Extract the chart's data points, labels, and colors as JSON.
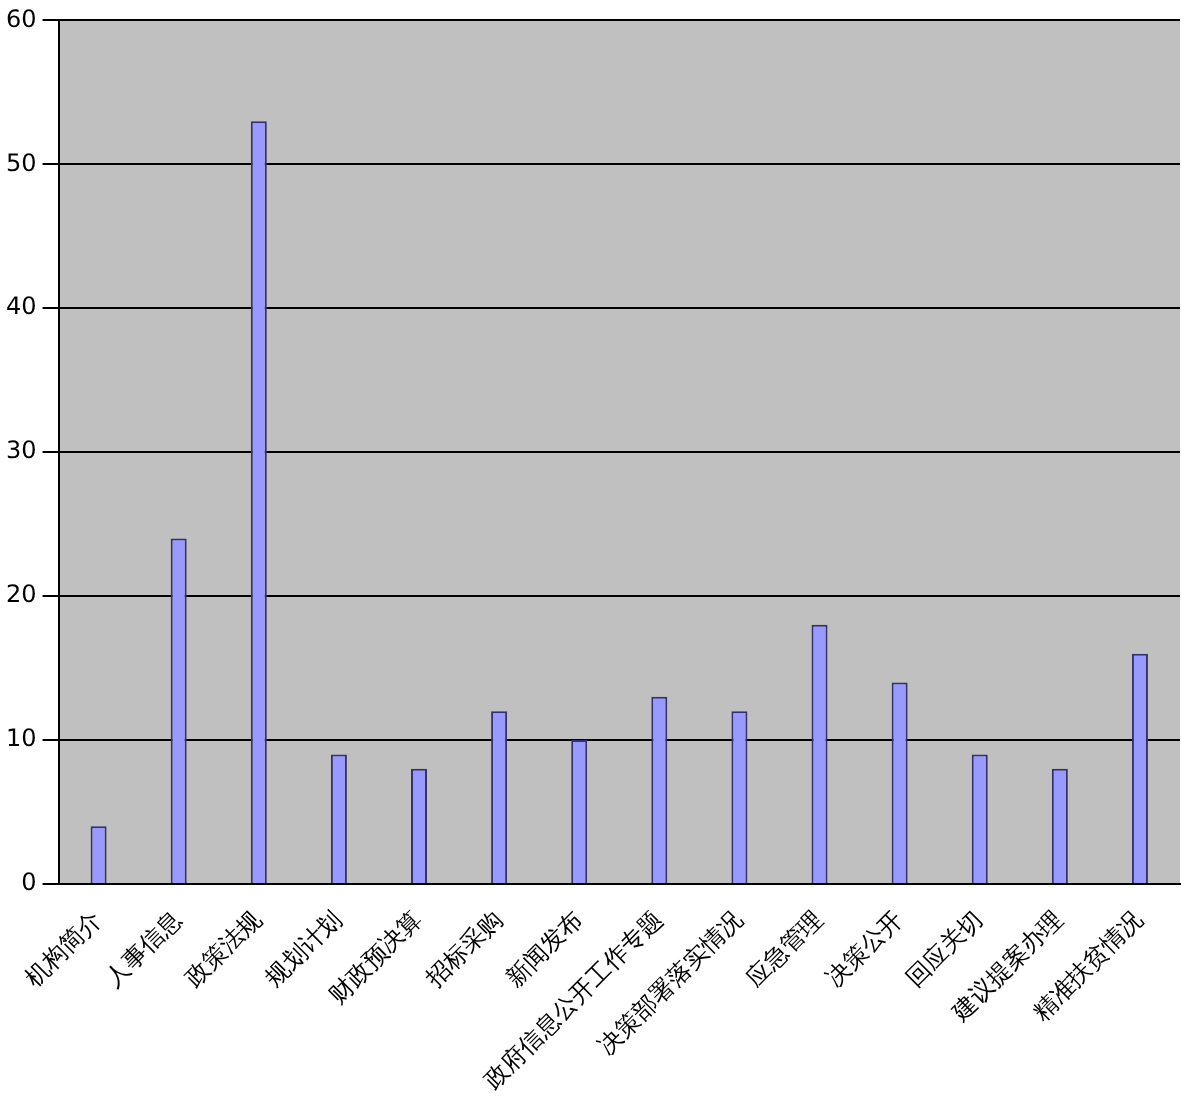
{
  "chart_data": {
    "type": "bar",
    "categories": [
      "机构简介",
      "人事信息",
      "政策法规",
      "规划计划",
      "财政预决算",
      "招标采购",
      "新闻发布",
      "政府信息公开工作专题",
      "决策部署落实情况",
      "应急管理",
      "决策公开",
      "回应关切",
      "建议提案办理",
      "精准扶贫情况"
    ],
    "values": [
      4,
      24,
      53,
      9,
      8,
      12,
      10,
      13,
      12,
      18,
      14,
      9,
      8,
      16
    ],
    "color": "#9999ff",
    "ylim": [
      0,
      60
    ],
    "yticks": [
      0,
      10,
      20,
      30,
      40,
      50,
      60
    ],
    "grid": "y",
    "legend": false
  }
}
